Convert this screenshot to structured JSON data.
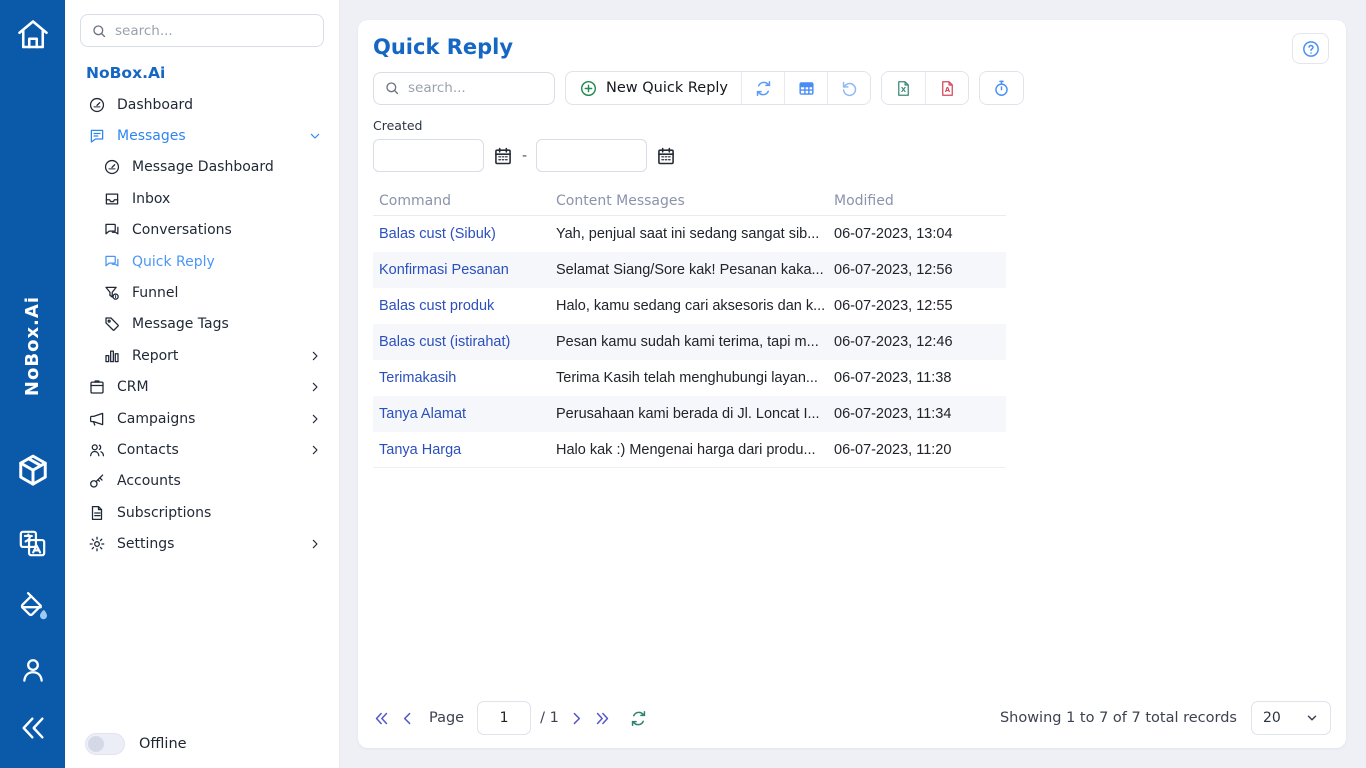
{
  "rail": {
    "brand": "NoBox.Ai"
  },
  "sidebar": {
    "search_placeholder": "search...",
    "brand": "NoBox.Ai",
    "items": [
      {
        "id": "dashboard",
        "label": "Dashboard",
        "icon": "gauge",
        "level": 0,
        "active": false,
        "chevron": ""
      },
      {
        "id": "messages",
        "label": "Messages",
        "icon": "message-square",
        "level": 0,
        "active": true,
        "chevron": "down"
      },
      {
        "id": "message-dashboard",
        "label": "Message Dashboard",
        "icon": "gauge",
        "level": 1,
        "active": false,
        "chevron": ""
      },
      {
        "id": "inbox",
        "label": "Inbox",
        "icon": "inbox",
        "level": 1,
        "active": false,
        "chevron": ""
      },
      {
        "id": "conversations",
        "label": "Conversations",
        "icon": "chat-double",
        "level": 1,
        "active": false,
        "chevron": ""
      },
      {
        "id": "quick-reply",
        "label": "Quick Reply",
        "icon": "chat-double",
        "level": 1,
        "active": true,
        "chevron": ""
      },
      {
        "id": "funnel",
        "label": "Funnel",
        "icon": "funnel",
        "level": 1,
        "active": false,
        "chevron": ""
      },
      {
        "id": "message-tags",
        "label": "Message Tags",
        "icon": "tag",
        "level": 1,
        "active": false,
        "chevron": ""
      },
      {
        "id": "report",
        "label": "Report",
        "icon": "bar-chart",
        "level": 1,
        "active": false,
        "chevron": "right"
      },
      {
        "id": "crm",
        "label": "CRM",
        "icon": "box",
        "level": 0,
        "active": false,
        "chevron": "right"
      },
      {
        "id": "campaigns",
        "label": "Campaigns",
        "icon": "megaphone",
        "level": 0,
        "active": false,
        "chevron": "right"
      },
      {
        "id": "contacts",
        "label": "Contacts",
        "icon": "users",
        "level": 0,
        "active": false,
        "chevron": "right"
      },
      {
        "id": "accounts",
        "label": "Accounts",
        "icon": "key",
        "level": 0,
        "active": false,
        "chevron": ""
      },
      {
        "id": "subscriptions",
        "label": "Subscriptions",
        "icon": "file-text",
        "level": 0,
        "active": false,
        "chevron": ""
      },
      {
        "id": "settings",
        "label": "Settings",
        "icon": "gear",
        "level": 0,
        "active": false,
        "chevron": "right"
      }
    ],
    "offline_label": "Offline"
  },
  "page": {
    "title": "Quick Reply",
    "search_placeholder": "search...",
    "new_button_label": "New Quick Reply",
    "created_label": "Created",
    "date_from": "",
    "date_to": "",
    "date_separator": "-"
  },
  "table": {
    "columns": [
      "Command",
      "Content Messages",
      "Modified"
    ],
    "rows": [
      {
        "command": "Balas cust (Sibuk)",
        "content": "Yah, penjual saat ini sedang sangat sib...",
        "modified": "06-07-2023, 13:04"
      },
      {
        "command": "Konfirmasi Pesanan",
        "content": "Selamat Siang/Sore kak! Pesanan kaka...",
        "modified": "06-07-2023, 12:56"
      },
      {
        "command": "Balas cust produk",
        "content": "Halo, kamu sedang cari aksesoris dan k...",
        "modified": "06-07-2023, 12:55"
      },
      {
        "command": "Balas cust (istirahat)",
        "content": "Pesan kamu sudah kami terima, tapi m...",
        "modified": "06-07-2023, 12:46"
      },
      {
        "command": "Terimakasih",
        "content": "Terima Kasih telah menghubungi layan...",
        "modified": "06-07-2023, 11:38"
      },
      {
        "command": "Tanya Alamat",
        "content": "Perusahaan kami berada di Jl. Loncat I...",
        "modified": "06-07-2023, 11:34"
      },
      {
        "command": "Tanya Harga",
        "content": "Halo kak :) Mengenai harga dari produ...",
        "modified": "06-07-2023, 11:20"
      }
    ]
  },
  "pagination": {
    "page_label": "Page",
    "page_value": "1",
    "page_total": "/ 1",
    "showing_text": "Showing 1 to 7 of 7 total records",
    "page_size": "20"
  },
  "colors": {
    "rail_blue": "#0b5aaa",
    "brand_blue": "#1667c3",
    "active_parent_blue": "#2f86f0",
    "active_child_blue": "#4a97f7",
    "command_link_blue": "#2b50bd",
    "header_gray": "#8b93ab",
    "stripe_gray": "#f5f7fa"
  }
}
